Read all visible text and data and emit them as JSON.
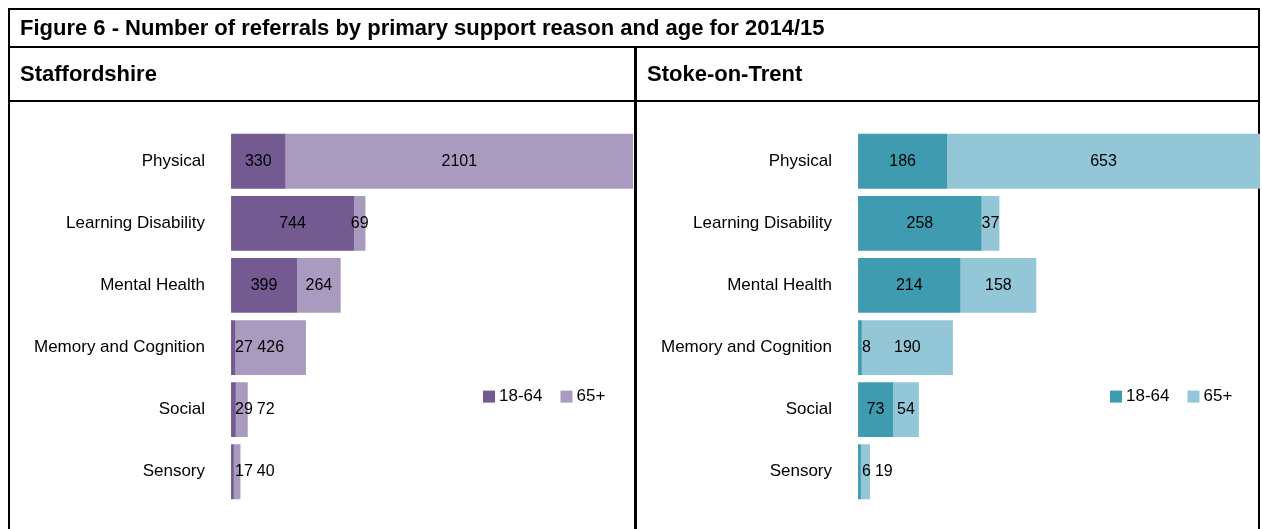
{
  "chart_data": [
    {
      "type": "bar",
      "title": "Figure 6 - Number of referrals by primary support reason and age for 2014/15",
      "subtitle": "Staffordshire",
      "orientation": "horizontal",
      "stacked": true,
      "data_labels": true,
      "legend": "right",
      "tick_labels": "y",
      "xlim": [
        0,
        2431
      ],
      "categories": [
        "Physical",
        "Learning Disability",
        "Mental Health",
        "Memory and Cognition",
        "Social",
        "Sensory"
      ],
      "series": [
        {
          "name": "18-64",
          "color": "#735a91",
          "values": [
            330,
            744,
            399,
            27,
            29,
            17
          ]
        },
        {
          "name": "65+",
          "color": "#a99bc0",
          "values": [
            2101,
            69,
            264,
            426,
            72,
            40
          ]
        }
      ]
    },
    {
      "type": "bar",
      "subtitle": "Stoke-on-Trent",
      "orientation": "horizontal",
      "stacked": true,
      "data_labels": true,
      "legend": "right",
      "tick_labels": "y",
      "xlim": [
        0,
        839
      ],
      "categories": [
        "Physical",
        "Learning Disability",
        "Mental Health",
        "Memory and Cognition",
        "Social",
        "Sensory"
      ],
      "series": [
        {
          "name": "18-64",
          "color": "#3f9bb0",
          "values": [
            186,
            258,
            214,
            8,
            73,
            6
          ]
        },
        {
          "name": "65+",
          "color": "#93c6d6",
          "values": [
            653,
            37,
            158,
            190,
            54,
            19
          ]
        }
      ]
    }
  ]
}
